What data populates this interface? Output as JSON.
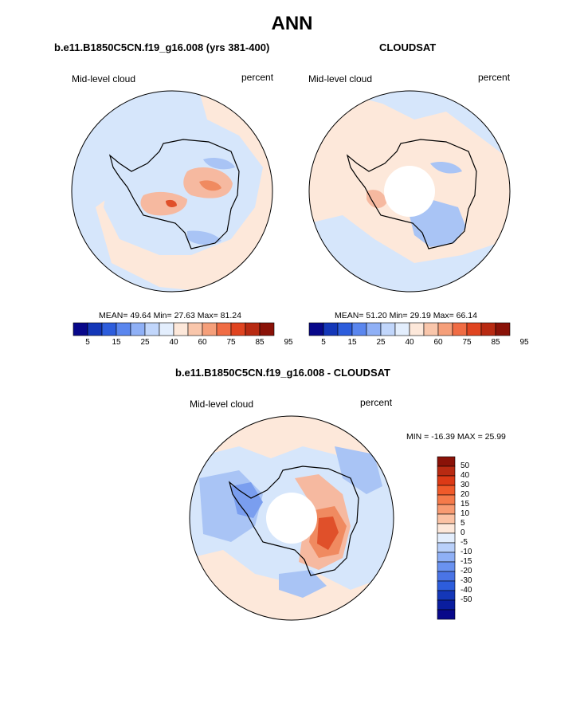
{
  "main_title": "ANN",
  "panels": [
    {
      "title": "b.e11.B1850C5CN.f19_g16.008 (yrs 381-400)",
      "left_label": "Mid-level cloud",
      "right_label": "percent",
      "stats": {
        "mean_label": "MEAN=",
        "mean": "49.64",
        "min_label": "Min=",
        "min": "27.63",
        "max_label": "Max=",
        "max": "81.24"
      },
      "has_pole_hole": false
    },
    {
      "title": "CLOUDSAT",
      "left_label": "Mid-level cloud",
      "right_label": "percent",
      "stats": {
        "mean_label": "MEAN=",
        "mean": "51.20",
        "min_label": "Min=",
        "min": "29.19",
        "max_label": "Max=",
        "max": "66.14"
      },
      "has_pole_hole": true
    }
  ],
  "abs_colorbar": {
    "colors": [
      "#08088a",
      "#1437b8",
      "#2d5ddc",
      "#5a86ee",
      "#8fb0f6",
      "#c1d6fb",
      "#e3eefd",
      "#fde8da",
      "#f9c6ab",
      "#f59f7a",
      "#f06c44",
      "#e04420",
      "#b82a12",
      "#8a1208"
    ],
    "ticks": [
      "5",
      "15",
      "25",
      "40",
      "60",
      "75",
      "85",
      "95"
    ]
  },
  "diff_panel": {
    "title": "b.e11.B1850C5CN.f19_g16.008 - CLOUDSAT",
    "left_label": "Mid-level cloud",
    "right_label": "percent",
    "minmax_text": "MIN = -16.39 MAX = 25.99",
    "colorbar": {
      "colors_top_to_bottom": [
        "#8a1208",
        "#b82a12",
        "#dc3a16",
        "#f05a2a",
        "#f57a4a",
        "#f89b72",
        "#fbc2a4",
        "#fde8da",
        "#e3eefd",
        "#b9d0fa",
        "#8fb0f6",
        "#6a92f0",
        "#4a74e6",
        "#2d5ddc",
        "#1437b8",
        "#0a1d9e",
        "#08088a"
      ],
      "ticks": [
        "50",
        "40",
        "30",
        "20",
        "15",
        "10",
        "5",
        "0",
        "-5",
        "-10",
        "-15",
        "-20",
        "-30",
        "-40",
        "-50"
      ]
    }
  },
  "colors": {
    "peach": "#fde8da",
    "light_blue": "#d6e6fb",
    "mid_blue": "#a9c4f5",
    "deep_blue": "#7a9eef",
    "salmon": "#f6b9a0",
    "orange": "#f08a60",
    "red": "#e0502a",
    "coast": "#000000"
  }
}
